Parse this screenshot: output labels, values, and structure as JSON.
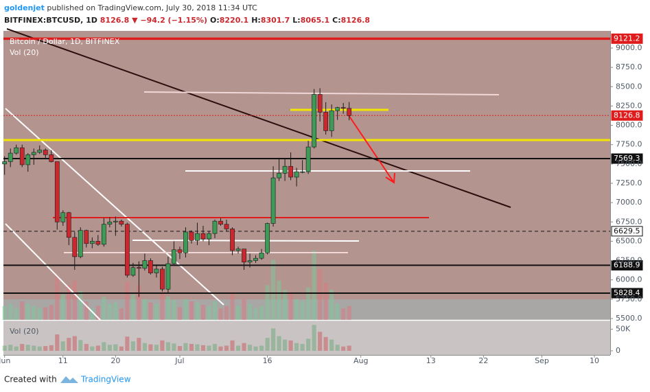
{
  "header": {
    "user": "goldenjet",
    "published": "published on TradingView.com, July 30, 2018 11:34 UTC",
    "symbol": "BITFINEX:BTCUSD, 1D",
    "last": "8126.8",
    "change": "▼ −94.2 (−1.15%)",
    "ohlc": [
      {
        "key": "O:",
        "value": "8220.1"
      },
      {
        "key": "H:",
        "value": "8301.7"
      },
      {
        "key": "L:",
        "value": "8065.1"
      },
      {
        "key": "C:",
        "value": "8126.8"
      }
    ]
  },
  "chart_data": {
    "type": "candlestick",
    "title": "Bitcoin / Dollar, 1D, BITFINEX",
    "up_color": "#3e9a57",
    "down_color": "#c8282e",
    "open": [
      7500,
      7530,
      7640,
      7710,
      7490,
      7620,
      7650,
      7680,
      7620,
      7530,
      6750,
      6870,
      6550,
      6300,
      6640,
      6470,
      6500,
      6460,
      6720,
      6750,
      6760,
      6720,
      6060,
      6160,
      6150,
      6250,
      6090,
      6140,
      5880,
      6210,
      6390,
      6350,
      6620,
      6510,
      6600,
      6530,
      6600,
      6760,
      6720,
      6660,
      6380,
      6400,
      6230,
      6250,
      6280,
      6350,
      6730,
      7320,
      7380,
      7470,
      7330,
      7400,
      7400,
      7720,
      8400,
      8170,
      7930,
      8190,
      8230,
      8220.1
    ],
    "high": [
      7600,
      7700,
      7750,
      7750,
      7640,
      7700,
      7740,
      7700,
      7680,
      7530,
      6900,
      6880,
      6620,
      6680,
      6650,
      6550,
      6580,
      6800,
      6810,
      6820,
      6780,
      6740,
      6220,
      6240,
      6340,
      6280,
      6200,
      6170,
      6300,
      6500,
      6430,
      6680,
      6640,
      6740,
      6700,
      6630,
      6780,
      6800,
      6780,
      6680,
      6430,
      6400,
      6340,
      6320,
      6400,
      6740,
      7470,
      7580,
      7560,
      7650,
      7450,
      7550,
      7800,
      8470,
      8480,
      8300,
      8270,
      8240,
      8290,
      8301.7
    ],
    "low": [
      7360,
      7460,
      7620,
      7460,
      7400,
      7490,
      7630,
      7560,
      7520,
      6650,
      6700,
      6450,
      6130,
      6280,
      6420,
      6410,
      6440,
      6430,
      6680,
      6570,
      6690,
      6030,
      6040,
      5780,
      6120,
      6070,
      6030,
      5850,
      5830,
      6200,
      6270,
      6290,
      6470,
      6450,
      6500,
      6450,
      6540,
      6700,
      6630,
      6320,
      6340,
      6130,
      6160,
      6220,
      6260,
      6330,
      6690,
      7280,
      7280,
      7290,
      7210,
      7380,
      7370,
      7700,
      8050,
      7880,
      7850,
      8070,
      8150,
      8065.1
    ],
    "close": [
      7530,
      7640,
      7710,
      7490,
      7620,
      7650,
      7680,
      7620,
      7530,
      6750,
      6870,
      6550,
      6300,
      6640,
      6470,
      6500,
      6460,
      6720,
      6750,
      6760,
      6720,
      6060,
      6160,
      6150,
      6250,
      6090,
      6140,
      5880,
      6210,
      6390,
      6350,
      6620,
      6510,
      6600,
      6530,
      6600,
      6760,
      6720,
      6660,
      6380,
      6400,
      6230,
      6250,
      6280,
      6350,
      6730,
      7320,
      7380,
      7470,
      7330,
      7400,
      7400,
      7720,
      8400,
      8170,
      7930,
      8190,
      8230,
      8220,
      8126.8
    ],
    "volume": {
      "name": "Vol (20)",
      "values": [
        12000,
        14000,
        10000,
        16000,
        14000,
        12000,
        10000,
        11000,
        13000,
        38000,
        22000,
        30000,
        34000,
        25000,
        16000,
        10000,
        12000,
        20000,
        14000,
        15000,
        10000,
        33000,
        22000,
        30000,
        18000,
        15000,
        14000,
        24000,
        20000,
        17000,
        11000,
        18000,
        16000,
        15000,
        13000,
        12000,
        16000,
        10000,
        12000,
        24000,
        12000,
        18000,
        14000,
        10000,
        12000,
        30000,
        52000,
        34000,
        26000,
        24000,
        18000,
        16000,
        28000,
        60000,
        44000,
        32000,
        26000,
        14000,
        10000,
        12000
      ],
      "ylim": [
        0,
        70000
      ],
      "yticks": [
        0,
        {
          "value": 50000,
          "label": "50K"
        }
      ]
    },
    "xlim": [
      -0.2,
      103.7
    ],
    "xticks": [
      {
        "value": 0,
        "label": "Jun"
      },
      {
        "value": 10,
        "label": "11"
      },
      {
        "value": 19,
        "label": "20"
      },
      {
        "value": 30,
        "label": "Jul"
      },
      {
        "value": 45,
        "label": "16"
      },
      {
        "value": 61,
        "label": "Aug"
      },
      {
        "value": 73,
        "label": "13"
      },
      {
        "value": 82,
        "label": "22"
      },
      {
        "value": 92,
        "label": "Sep"
      },
      {
        "value": 101,
        "label": "10"
      }
    ],
    "ylim": [
      5482,
      9222
    ],
    "yticks": [
      {
        "value": 9000,
        "label": "9000.0"
      },
      {
        "value": 8750,
        "label": "8750.0"
      },
      {
        "value": 8500,
        "label": "8500.0"
      },
      {
        "value": 8250,
        "label": "8250.0"
      },
      {
        "value": 8000,
        "label": "8000.0"
      },
      {
        "value": 7750,
        "label": "7750.0"
      },
      {
        "value": 7500,
        "label": "7500.0"
      },
      {
        "value": 7250,
        "label": "7250.0"
      },
      {
        "value": 7000,
        "label": "7000.0"
      },
      {
        "value": 6750,
        "label": "6750.0"
      },
      {
        "value": 6500,
        "label": "6500.0"
      },
      {
        "value": 6250,
        "label": "6250.0"
      },
      {
        "value": 6000,
        "label": "6000.0"
      },
      {
        "value": 5750,
        "label": "5750.0"
      },
      {
        "value": 5500,
        "label": "5500.0"
      }
    ],
    "levels": [
      {
        "value": 9121.2,
        "color": "#e01b1b",
        "style": "solid"
      },
      {
        "value": 8126.8,
        "color": "#e01b1b",
        "style": "dotted"
      },
      {
        "value": 7569.3,
        "color": "#111111",
        "style": "solid"
      },
      {
        "value": 6629.5,
        "color": "#111111",
        "style": "dashed"
      },
      {
        "value": 6188.9,
        "color": "#111111",
        "style": "solid"
      },
      {
        "value": 5828.4,
        "color": "#111111",
        "style": "solid"
      }
    ]
  },
  "footer": {
    "created": "Created with",
    "brand": "TradingView"
  }
}
